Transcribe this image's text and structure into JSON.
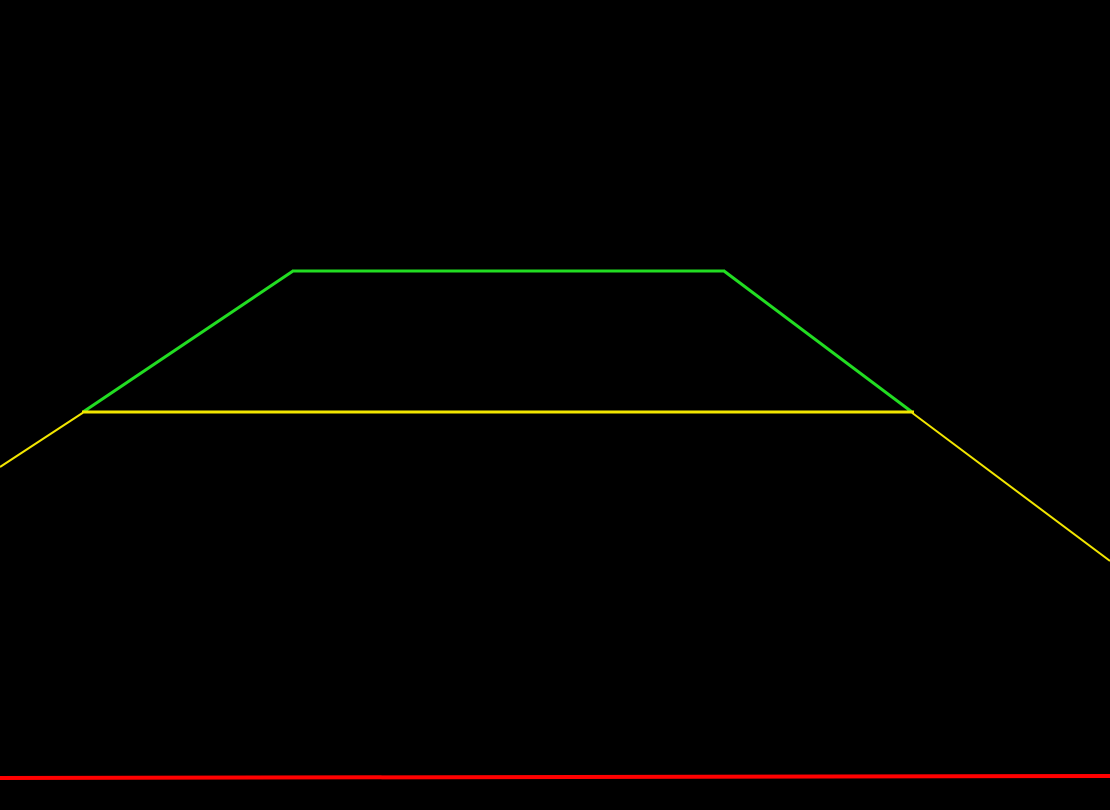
{
  "colors": {
    "background": "#000000",
    "far_guide": "#22dd22",
    "near_guide": "#f2e600",
    "stop_line": "#ff0000"
  }
}
